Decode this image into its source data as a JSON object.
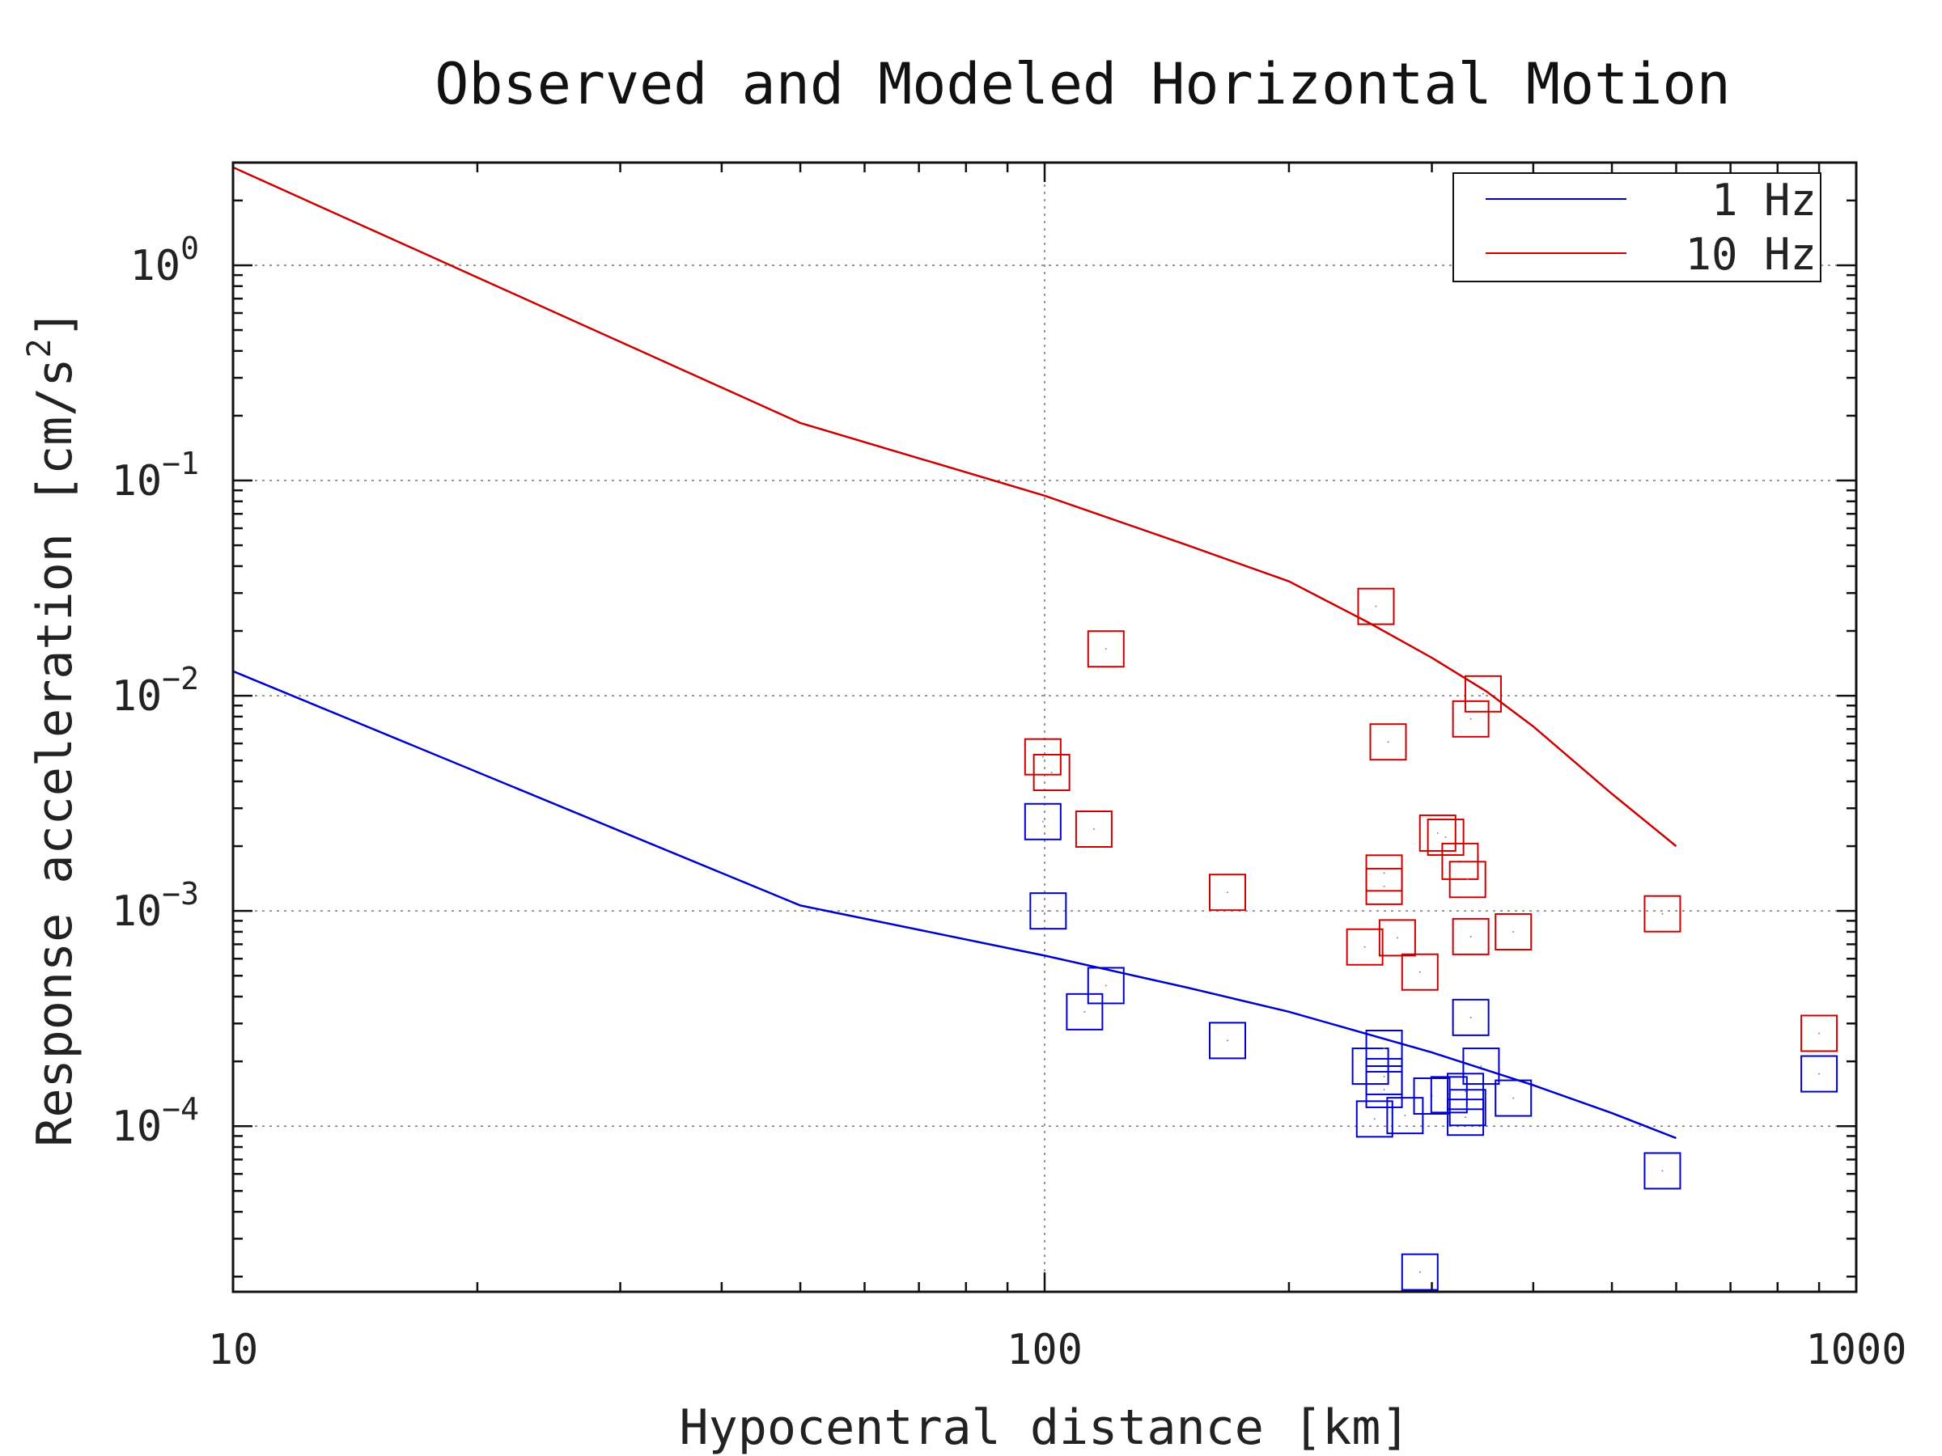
{
  "chart_data": {
    "type": "scatter",
    "title": "Observed and Modeled Horizontal Motion",
    "xlabel": "Hypocentral distance [km]",
    "ylabel_text": "Response acceleration [cm/s",
    "ylabel_superscript": "2",
    "ylabel_close": "]",
    "x_scale": "log",
    "y_scale": "log",
    "xlim": [
      10,
      1000
    ],
    "ylim": [
      1.7e-05,
      3.0
    ],
    "x_ticks": [
      {
        "value": 10,
        "label": "10"
      },
      {
        "value": 100,
        "label": "100"
      },
      {
        "value": 1000,
        "label": "1000"
      }
    ],
    "y_ticks": [
      {
        "value": 1,
        "base": "10",
        "exp": "0"
      },
      {
        "value": 0.1,
        "base": "10",
        "exp": "−1"
      },
      {
        "value": 0.01,
        "base": "10",
        "exp": "−2"
      },
      {
        "value": 0.001,
        "base": "10",
        "exp": "−3"
      },
      {
        "value": 0.0001,
        "base": "10",
        "exp": "−4"
      }
    ],
    "grid": true,
    "legend_position": "top-right",
    "series": [
      {
        "name": "1 Hz",
        "color": "#0000cc",
        "line": [
          [
            10,
            0.013
          ],
          [
            50,
            0.00106
          ],
          [
            100,
            0.00062
          ],
          [
            150,
            0.00044
          ],
          [
            200,
            0.00034
          ],
          [
            300,
            0.00022
          ],
          [
            400,
            0.000155
          ],
          [
            500,
            0.000115
          ],
          [
            600,
            8.8e-05
          ]
        ],
        "points": [
          [
            99.5,
            0.0026
          ],
          [
            101,
            0.001
          ],
          [
            119,
            0.00045
          ],
          [
            112,
            0.00034
          ],
          [
            168,
            0.00025
          ],
          [
            252,
            0.00019
          ],
          [
            262,
            0.00023
          ],
          [
            262,
            0.00017
          ],
          [
            262,
            0.000148
          ],
          [
            255,
            0.000108
          ],
          [
            278,
            0.000112
          ],
          [
            290,
            2.1e-05
          ],
          [
            300,
            0.000138
          ],
          [
            315,
            0.00014
          ],
          [
            335,
            0.00032
          ],
          [
            330,
            0.000145
          ],
          [
            332,
            0.000122
          ],
          [
            330,
            0.00011
          ],
          [
            345,
            0.00019
          ],
          [
            378,
            0.000135
          ],
          [
            577,
            6.2e-05
          ],
          [
            900,
            0.000175
          ]
        ]
      },
      {
        "name": "10 Hz",
        "color": "#cc0000",
        "line": [
          [
            10,
            2.85
          ],
          [
            50,
            0.185
          ],
          [
            100,
            0.085
          ],
          [
            150,
            0.05
          ],
          [
            200,
            0.034
          ],
          [
            250,
            0.022
          ],
          [
            300,
            0.015
          ],
          [
            350,
            0.0105
          ],
          [
            400,
            0.0072
          ],
          [
            500,
            0.0035
          ],
          [
            600,
            0.002
          ]
        ],
        "points": [
          [
            99.5,
            0.0052
          ],
          [
            102,
            0.0044
          ],
          [
            119,
            0.0165
          ],
          [
            115,
            0.0024
          ],
          [
            168,
            0.00122
          ],
          [
            256,
            0.026
          ],
          [
            265,
            0.0061
          ],
          [
            262,
            0.0015
          ],
          [
            262,
            0.0013
          ],
          [
            248,
            0.00068
          ],
          [
            272,
            0.00075
          ],
          [
            290,
            0.00052
          ],
          [
            305,
            0.0023
          ],
          [
            312,
            0.0022
          ],
          [
            325,
            0.0017
          ],
          [
            332,
            0.0014
          ],
          [
            335,
            0.0078
          ],
          [
            347,
            0.0102
          ],
          [
            335,
            0.00076
          ],
          [
            378,
            0.0008
          ],
          [
            577,
            0.00097
          ],
          [
            900,
            0.00027
          ]
        ]
      }
    ]
  }
}
